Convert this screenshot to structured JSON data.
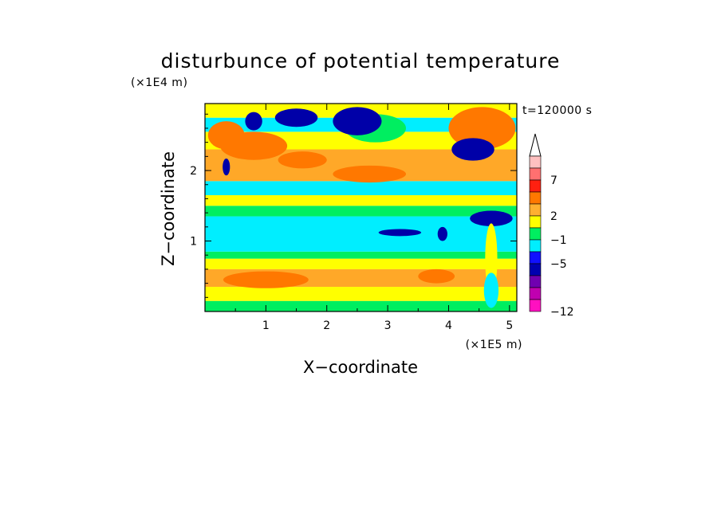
{
  "chart_data": {
    "type": "heatmap",
    "title": "disturbunce of potential temperature",
    "annotation": "t=120000 s",
    "xlabel": "X−coordinate",
    "ylabel": "Z−coordinate",
    "x_unit": "(×1E5 m)",
    "y_unit": "(×1E4 m)",
    "x_range": [
      0,
      5.12
    ],
    "y_range": [
      0,
      2.95
    ],
    "x_ticks": [
      "1",
      "2",
      "3",
      "4",
      "5"
    ],
    "y_ticks": [
      "1",
      "2"
    ],
    "colorbar": {
      "labels": [
        "7",
        "2",
        "−1",
        "−5",
        "−12"
      ],
      "extend": "max",
      "colors": [
        "#ffc0c0",
        "#ff7070",
        "#ff2010",
        "#ff7800",
        "#ffb030",
        "#ffff00",
        "#00ee60",
        "#00eeff",
        "#1010ff",
        "#0000b0",
        "#7000b0",
        "#c000b0",
        "#ff10c0"
      ]
    },
    "fill_colors": {
      "orange": "#ffa828",
      "dark_orange": "#ff7800",
      "red": "#ff2818",
      "yellow": "#ffff00",
      "green": "#00ee60",
      "cyan": "#00eeff",
      "blue": "#1818ff",
      "navy": "#0000a8",
      "magenta": "#ff10c0"
    },
    "bands": [
      {
        "z": [
          0.0,
          0.15
        ],
        "level": "green"
      },
      {
        "z": [
          0.15,
          0.35
        ],
        "level": "yellow"
      },
      {
        "z": [
          0.35,
          0.6
        ],
        "level": "orange"
      },
      {
        "z": [
          0.6,
          0.75
        ],
        "level": "yellow"
      },
      {
        "z": [
          0.75,
          0.85
        ],
        "level": "green"
      },
      {
        "z": [
          0.85,
          1.35
        ],
        "level": "cyan"
      },
      {
        "z": [
          1.35,
          1.5
        ],
        "level": "green"
      },
      {
        "z": [
          1.5,
          1.65
        ],
        "level": "yellow"
      },
      {
        "z": [
          1.65,
          1.85
        ],
        "level": "cyan"
      },
      {
        "z": [
          1.85,
          2.3
        ],
        "level": "orange"
      },
      {
        "z": [
          2.3,
          2.55
        ],
        "level": "yellow"
      },
      {
        "z": [
          2.55,
          2.75
        ],
        "level": "cyan"
      },
      {
        "z": [
          2.75,
          2.95
        ],
        "level": "yellow"
      }
    ],
    "features": [
      {
        "cx": 0.8,
        "cz": 2.35,
        "rx": 0.55,
        "rz": 0.2,
        "level": "dark_orange"
      },
      {
        "cx": 0.35,
        "cz": 2.5,
        "rx": 0.3,
        "rz": 0.2,
        "level": "dark_orange"
      },
      {
        "cx": 2.7,
        "cz": 1.95,
        "rx": 0.6,
        "rz": 0.12,
        "level": "dark_orange"
      },
      {
        "cx": 1.6,
        "cz": 2.15,
        "rx": 0.4,
        "rz": 0.12,
        "level": "dark_orange"
      },
      {
        "cx": 2.8,
        "cz": 2.6,
        "rx": 0.5,
        "rz": 0.2,
        "level": "green"
      },
      {
        "cx": 2.5,
        "cz": 2.7,
        "rx": 0.4,
        "rz": 0.2,
        "level": "navy"
      },
      {
        "cx": 1.5,
        "cz": 2.75,
        "rx": 0.35,
        "rz": 0.13,
        "level": "navy"
      },
      {
        "cx": 0.8,
        "cz": 2.7,
        "rx": 0.14,
        "rz": 0.13,
        "level": "navy"
      },
      {
        "cx": 0.35,
        "cz": 2.05,
        "rx": 0.06,
        "rz": 0.12,
        "level": "navy"
      },
      {
        "cx": 4.55,
        "cz": 2.6,
        "rx": 0.55,
        "rz": 0.3,
        "level": "dark_orange"
      },
      {
        "cx": 4.4,
        "cz": 2.3,
        "rx": 0.35,
        "rz": 0.16,
        "level": "navy"
      },
      {
        "cx": 4.7,
        "cz": 1.32,
        "rx": 0.35,
        "rz": 0.11,
        "level": "navy"
      },
      {
        "cx": 4.7,
        "cz": 0.75,
        "rx": 0.1,
        "rz": 0.5,
        "level": "yellow"
      },
      {
        "cx": 4.7,
        "cz": 0.3,
        "rx": 0.12,
        "rz": 0.25,
        "level": "cyan"
      },
      {
        "cx": 3.2,
        "cz": 1.12,
        "rx": 0.35,
        "rz": 0.05,
        "level": "navy"
      },
      {
        "cx": 3.9,
        "cz": 1.1,
        "rx": 0.08,
        "rz": 0.1,
        "level": "navy"
      },
      {
        "cx": 1.0,
        "cz": 0.45,
        "rx": 0.7,
        "rz": 0.12,
        "level": "dark_orange"
      },
      {
        "cx": 3.8,
        "cz": 0.5,
        "rx": 0.3,
        "rz": 0.1,
        "level": "dark_orange"
      }
    ]
  }
}
